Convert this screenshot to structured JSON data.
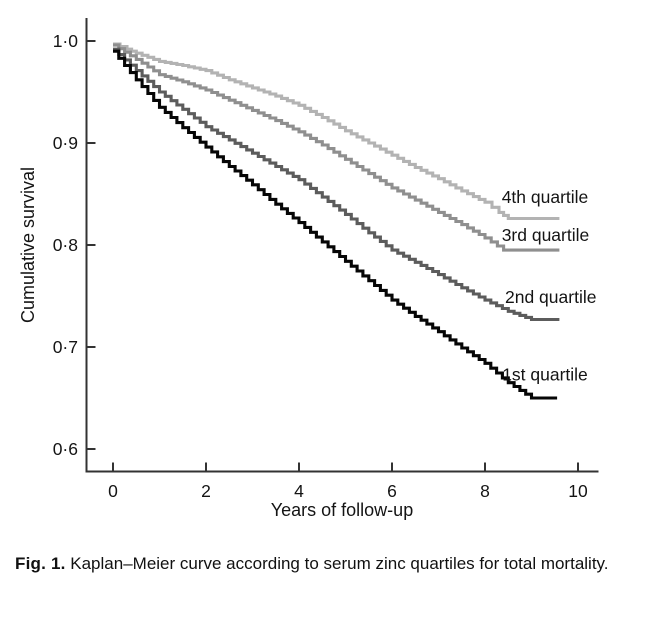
{
  "figure": {
    "caption_prefix": "Fig. 1.",
    "caption_text": "Kaplan–Meier curve according to serum zinc quartiles for total mortality."
  },
  "chart_data": {
    "type": "line",
    "subtype": "kaplan-meier-step",
    "title": "",
    "xlabel": "Years of follow-up",
    "ylabel": "Cumulative survival",
    "xlim": [
      -0.6,
      10.6
    ],
    "ylim": [
      0.585,
      1.02
    ],
    "grid": false,
    "legend_position": "inline-right-of-curves",
    "x_ticks": {
      "values": [
        0,
        2,
        4,
        6,
        8,
        10
      ],
      "labels": [
        "0",
        "2",
        "4",
        "6",
        "8",
        "10"
      ]
    },
    "y_ticks": {
      "values": [
        1.0,
        0.9,
        0.8,
        0.7,
        0.6
      ],
      "labels": [
        "1·0",
        "0·9",
        "0·8",
        "0·7",
        "0·6"
      ]
    },
    "series": [
      {
        "name": "4th quartile",
        "color": "#b3b3b3",
        "label_pos": {
          "x": 8.36,
          "y": 0.847
        },
        "points": [
          [
            0,
            0.997
          ],
          [
            0.3,
            0.992
          ],
          [
            0.5,
            0.988
          ],
          [
            0.75,
            0.984
          ],
          [
            1,
            0.98
          ],
          [
            1.5,
            0.976
          ],
          [
            2,
            0.971
          ],
          [
            2.5,
            0.962
          ],
          [
            3,
            0.954
          ],
          [
            3.5,
            0.946
          ],
          [
            4,
            0.937
          ],
          [
            4.5,
            0.925
          ],
          [
            5,
            0.912
          ],
          [
            5.5,
            0.9
          ],
          [
            6,
            0.888
          ],
          [
            6.5,
            0.876
          ],
          [
            7,
            0.865
          ],
          [
            7.5,
            0.853
          ],
          [
            8,
            0.842
          ],
          [
            8.3,
            0.832
          ],
          [
            8.5,
            0.826
          ],
          [
            9.6,
            0.826
          ]
        ]
      },
      {
        "name": "3rd quartile",
        "color": "#8f8f8f",
        "label_pos": {
          "x": 8.36,
          "y": 0.81
        },
        "points": [
          [
            0,
            0.996
          ],
          [
            0.5,
            0.982
          ],
          [
            1,
            0.967
          ],
          [
            1.5,
            0.96
          ],
          [
            2,
            0.952
          ],
          [
            2.5,
            0.942
          ],
          [
            3,
            0.932
          ],
          [
            3.5,
            0.922
          ],
          [
            4,
            0.911
          ],
          [
            4.5,
            0.898
          ],
          [
            5,
            0.884
          ],
          [
            5.5,
            0.87
          ],
          [
            6,
            0.856
          ],
          [
            6.5,
            0.844
          ],
          [
            7,
            0.832
          ],
          [
            7.5,
            0.82
          ],
          [
            8,
            0.807
          ],
          [
            8.4,
            0.795
          ],
          [
            9.6,
            0.795
          ]
        ]
      },
      {
        "name": "2nd quartile",
        "color": "#5c5c5c",
        "label_pos": {
          "x": 8.43,
          "y": 0.749
        },
        "points": [
          [
            0,
            0.992
          ],
          [
            0.5,
            0.971
          ],
          [
            1,
            0.95
          ],
          [
            1.5,
            0.933
          ],
          [
            2,
            0.916
          ],
          [
            2.5,
            0.903
          ],
          [
            3,
            0.89
          ],
          [
            3.5,
            0.877
          ],
          [
            4,
            0.864
          ],
          [
            4.5,
            0.847
          ],
          [
            5,
            0.83
          ],
          [
            5.5,
            0.812
          ],
          [
            6,
            0.795
          ],
          [
            6.5,
            0.783
          ],
          [
            7,
            0.771
          ],
          [
            7.5,
            0.758
          ],
          [
            8,
            0.746
          ],
          [
            8.5,
            0.735
          ],
          [
            9,
            0.727
          ],
          [
            9.6,
            0.727
          ]
        ]
      },
      {
        "name": "1st quartile",
        "color": "#060606",
        "label_pos": {
          "x": 8.37,
          "y": 0.673
        },
        "points": [
          [
            0,
            0.99
          ],
          [
            0.5,
            0.962
          ],
          [
            1,
            0.935
          ],
          [
            1.5,
            0.915
          ],
          [
            2,
            0.896
          ],
          [
            2.5,
            0.877
          ],
          [
            3,
            0.859
          ],
          [
            3.5,
            0.84
          ],
          [
            4,
            0.822
          ],
          [
            4.5,
            0.803
          ],
          [
            5,
            0.784
          ],
          [
            5.5,
            0.765
          ],
          [
            6,
            0.746
          ],
          [
            6.5,
            0.73
          ],
          [
            7,
            0.715
          ],
          [
            7.5,
            0.699
          ],
          [
            8,
            0.684
          ],
          [
            8.5,
            0.665
          ],
          [
            9,
            0.65
          ],
          [
            9.55,
            0.65
          ]
        ]
      }
    ]
  }
}
